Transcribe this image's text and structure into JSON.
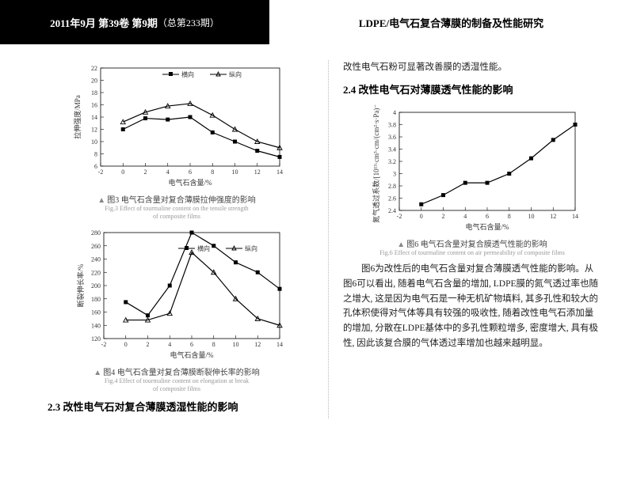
{
  "header": {
    "date_vol": "2011年9月 第39卷 第9期",
    "issue_no": "（总第233期）",
    "paper_title": "LDPE/电气石复合薄膜的制备及性能研究"
  },
  "fig3": {
    "type": "line",
    "series": [
      {
        "name": "横向",
        "marker": "square",
        "color": "#000000",
        "x": [
          0,
          2,
          4,
          6,
          8,
          10,
          12,
          14
        ],
        "y": [
          12,
          13.8,
          13.6,
          14.0,
          11.5,
          10,
          8.5,
          7.5
        ]
      },
      {
        "name": "纵向",
        "marker": "triangle",
        "color": "#000000",
        "x": [
          0,
          2,
          4,
          6,
          8,
          10,
          12,
          14
        ],
        "y": [
          13.2,
          14.8,
          15.8,
          16.2,
          14.3,
          12,
          10,
          9
        ]
      }
    ],
    "xlabel": "电气石含量/%",
    "ylabel": "拉伸强度/MPa",
    "xlim": [
      -2,
      14
    ],
    "ylim": [
      6,
      22
    ],
    "xticks": [
      -2,
      0,
      2,
      4,
      6,
      8,
      10,
      12,
      14
    ],
    "yticks": [
      6,
      8,
      10,
      12,
      14,
      16,
      18,
      20,
      22
    ],
    "caption_cn": "图3 电气石含量对复合薄膜拉伸强度的影响",
    "caption_en_1": "Fig.3 Effect of tourmaline content on the tensile strength",
    "caption_en_2": "of composite films"
  },
  "fig4": {
    "type": "line",
    "series": [
      {
        "name": "横向",
        "marker": "square",
        "color": "#000000",
        "x": [
          0,
          2,
          4,
          6,
          8,
          10,
          12,
          14
        ],
        "y": [
          175,
          155,
          200,
          280,
          260,
          235,
          220,
          195
        ]
      },
      {
        "name": "纵向",
        "marker": "triangle",
        "color": "#000000",
        "x": [
          0,
          2,
          4,
          6,
          8,
          10,
          12,
          14
        ],
        "y": [
          148,
          148,
          158,
          250,
          220,
          180,
          150,
          140
        ]
      }
    ],
    "xlabel": "电气石含量/%",
    "ylabel": "断裂伸长率/%",
    "xlim": [
      -2,
      14
    ],
    "ylim": [
      120,
      280
    ],
    "xticks": [
      -2,
      0,
      2,
      4,
      6,
      8,
      10,
      12,
      14
    ],
    "yticks": [
      120,
      140,
      160,
      180,
      200,
      220,
      240,
      260,
      280
    ],
    "caption_cn": "图4 电气石含量对复合薄膜断裂伸长率的影响",
    "caption_en_1": "Fig.4 Effect of tourmaline content on elongation at break",
    "caption_en_2": "of composite films"
  },
  "fig6": {
    "type": "line",
    "series": [
      {
        "marker": "square",
        "color": "#000000",
        "x": [
          0,
          2,
          4,
          6,
          8,
          10,
          12,
          14
        ],
        "y": [
          2.5,
          2.65,
          2.85,
          2.85,
          3.0,
          3.25,
          3.55,
          3.8
        ]
      }
    ],
    "xlabel": "电气石含量/%",
    "ylabel": "氮气透过系数/[10¹³·cm³·cm/(cm²·s·Pa)⁻¹]",
    "xlim": [
      -2,
      14
    ],
    "ylim": [
      2.4,
      4.0
    ],
    "xticks": [
      -2,
      0,
      2,
      4,
      6,
      8,
      10,
      12,
      14
    ],
    "yticks": [
      2.4,
      2.6,
      2.8,
      3.0,
      3.2,
      3.4,
      3.6,
      3.8,
      4.0
    ],
    "caption_cn": "图6 电气石含量对复合膜透气性能的影响",
    "caption_en": "Fig.6 Effect of tourmaline content on air permeability of composite films"
  },
  "sections": {
    "s23_title": "2.3 改性电气石对复合薄膜透湿性能的影响",
    "s24_title": "2.4 改性电气石对薄膜透气性能的影响",
    "right_intro": "改性电气石粉可显著改善膜的透湿性能。",
    "right_para": "图6为改性后的电气石含量对复合薄膜透气性能的影响。从图6可以看出, 随着电气石含量的增加, LDPE膜的氮气透过率也随之增大, 这是因为电气石是一种无机矿物填料, 其多孔性和较大的孔体积使得对气体等具有较强的吸收性, 随着改性电气石添加量的增加, 分散在LDPE基体中的多孔性颗粒增多, 密度增大, 具有极性, 因此该复合膜的气体透过率增加也越来越明显。"
  }
}
